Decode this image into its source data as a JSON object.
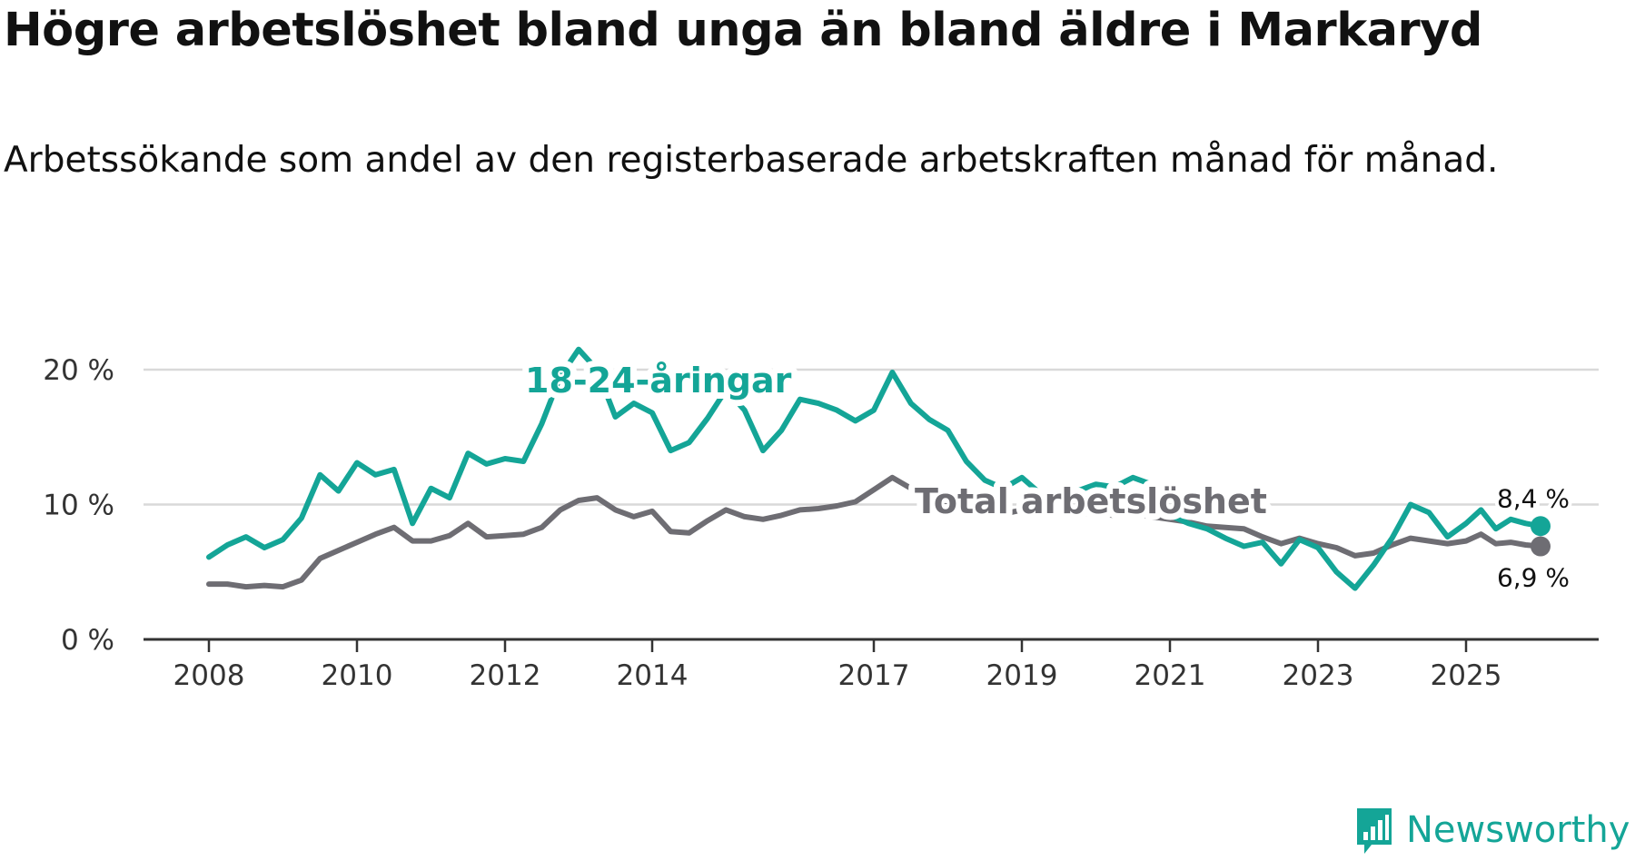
{
  "title": "Högre arbetslöshet bland unga än bland äldre i Markaryd",
  "subtitle": "Arbetssökande som andel av den registerbaserade arbetskraften månad för månad.",
  "brand": {
    "name": "Newsworthy",
    "icon": "newsworthy-logo-icon",
    "color": "#14a597"
  },
  "chart_data": {
    "type": "line",
    "title": "Högre arbetslöshet bland unga än bland äldre i Markaryd",
    "xlabel": "",
    "ylabel": "",
    "ylim": [
      0,
      22.5
    ],
    "y_ticks": [
      0,
      10,
      20
    ],
    "y_tick_labels": [
      "0 %",
      "10 %",
      "20 %"
    ],
    "x_ticks": [
      2008,
      2010,
      2012,
      2014,
      2017,
      2019,
      2021,
      2023,
      2025
    ],
    "x_tick_labels": [
      "2008",
      "2010",
      "2012",
      "2014",
      "2017",
      "2019",
      "2021",
      "2023",
      "2025"
    ],
    "grid": true,
    "series": [
      {
        "name": "18-24-åringar",
        "label": "18-24-åringar",
        "color": "#14a597",
        "end_label": "8,4 %",
        "points": [
          [
            2008.0,
            6.1
          ],
          [
            2008.25,
            7.0
          ],
          [
            2008.5,
            7.6
          ],
          [
            2008.75,
            6.8
          ],
          [
            2009.0,
            7.4
          ],
          [
            2009.25,
            9.0
          ],
          [
            2009.5,
            12.2
          ],
          [
            2009.75,
            11.0
          ],
          [
            2010.0,
            13.1
          ],
          [
            2010.25,
            12.2
          ],
          [
            2010.5,
            12.6
          ],
          [
            2010.75,
            8.6
          ],
          [
            2011.0,
            11.2
          ],
          [
            2011.25,
            10.5
          ],
          [
            2011.5,
            13.8
          ],
          [
            2011.75,
            13.0
          ],
          [
            2012.0,
            13.4
          ],
          [
            2012.25,
            13.2
          ],
          [
            2012.5,
            16.0
          ],
          [
            2012.75,
            19.5
          ],
          [
            2013.0,
            21.5
          ],
          [
            2013.25,
            20.0
          ],
          [
            2013.5,
            16.5
          ],
          [
            2013.75,
            17.5
          ],
          [
            2014.0,
            16.8
          ],
          [
            2014.25,
            14.0
          ],
          [
            2014.5,
            14.6
          ],
          [
            2014.75,
            16.4
          ],
          [
            2015.0,
            18.5
          ],
          [
            2015.25,
            17.0
          ],
          [
            2015.5,
            14.0
          ],
          [
            2015.75,
            15.5
          ],
          [
            2016.0,
            17.8
          ],
          [
            2016.25,
            17.5
          ],
          [
            2016.5,
            17.0
          ],
          [
            2016.75,
            16.2
          ],
          [
            2017.0,
            17.0
          ],
          [
            2017.25,
            19.8
          ],
          [
            2017.5,
            17.5
          ],
          [
            2017.75,
            16.3
          ],
          [
            2018.0,
            15.5
          ],
          [
            2018.25,
            13.2
          ],
          [
            2018.5,
            11.8
          ],
          [
            2018.75,
            11.2
          ],
          [
            2019.0,
            12.0
          ],
          [
            2019.25,
            10.8
          ],
          [
            2019.5,
            10.5
          ],
          [
            2019.75,
            11.0
          ],
          [
            2020.0,
            11.5
          ],
          [
            2020.25,
            11.3
          ],
          [
            2020.5,
            12.0
          ],
          [
            2020.75,
            11.5
          ],
          [
            2021.0,
            9.2
          ],
          [
            2021.25,
            8.6
          ],
          [
            2021.5,
            8.2
          ],
          [
            2021.75,
            7.5
          ],
          [
            2022.0,
            6.9
          ],
          [
            2022.25,
            7.2
          ],
          [
            2022.5,
            5.6
          ],
          [
            2022.75,
            7.4
          ],
          [
            2023.0,
            6.8
          ],
          [
            2023.25,
            5.0
          ],
          [
            2023.5,
            3.8
          ],
          [
            2023.75,
            5.5
          ],
          [
            2024.0,
            7.5
          ],
          [
            2024.25,
            10.0
          ],
          [
            2024.5,
            9.4
          ],
          [
            2024.75,
            7.6
          ],
          [
            2025.0,
            8.6
          ],
          [
            2025.25,
            9.6
          ],
          [
            2025.5,
            8.2
          ],
          [
            2025.75,
            8.9
          ],
          [
            2026.0,
            8.6
          ],
          [
            2026.25,
            8.4
          ]
        ]
      },
      {
        "name": "Total arbetslöshet",
        "label": "Total arbetslöshet",
        "color": "#6e6d73",
        "end_label": "6,9 %",
        "points": [
          [
            2008.0,
            4.1
          ],
          [
            2008.25,
            4.1
          ],
          [
            2008.5,
            3.9
          ],
          [
            2008.75,
            4.0
          ],
          [
            2009.0,
            3.9
          ],
          [
            2009.25,
            4.4
          ],
          [
            2009.5,
            6.0
          ],
          [
            2009.75,
            6.6
          ],
          [
            2010.0,
            7.2
          ],
          [
            2010.25,
            7.8
          ],
          [
            2010.5,
            8.3
          ],
          [
            2010.75,
            7.3
          ],
          [
            2011.0,
            7.3
          ],
          [
            2011.25,
            7.7
          ],
          [
            2011.5,
            8.6
          ],
          [
            2011.75,
            7.6
          ],
          [
            2012.0,
            7.7
          ],
          [
            2012.25,
            7.8
          ],
          [
            2012.5,
            8.3
          ],
          [
            2012.75,
            9.6
          ],
          [
            2013.0,
            10.3
          ],
          [
            2013.25,
            10.5
          ],
          [
            2013.5,
            9.6
          ],
          [
            2013.75,
            9.1
          ],
          [
            2014.0,
            9.5
          ],
          [
            2014.25,
            8.0
          ],
          [
            2014.5,
            7.9
          ],
          [
            2014.75,
            8.8
          ],
          [
            2015.0,
            9.6
          ],
          [
            2015.25,
            9.1
          ],
          [
            2015.5,
            8.9
          ],
          [
            2015.75,
            9.2
          ],
          [
            2016.0,
            9.6
          ],
          [
            2016.25,
            9.7
          ],
          [
            2016.5,
            9.9
          ],
          [
            2016.75,
            10.2
          ],
          [
            2017.0,
            11.1
          ],
          [
            2017.25,
            12.0
          ],
          [
            2017.5,
            11.2
          ],
          [
            2017.75,
            10.6
          ],
          [
            2018.0,
            10.2
          ],
          [
            2018.25,
            9.7
          ],
          [
            2018.5,
            9.4
          ],
          [
            2018.75,
            9.3
          ],
          [
            2019.0,
            9.6
          ],
          [
            2019.25,
            9.6
          ],
          [
            2019.5,
            9.5
          ],
          [
            2019.75,
            9.4
          ],
          [
            2020.0,
            9.3
          ],
          [
            2020.25,
            9.2
          ],
          [
            2020.5,
            9.3
          ],
          [
            2020.75,
            9.1
          ],
          [
            2021.0,
            8.9
          ],
          [
            2021.25,
            8.7
          ],
          [
            2021.5,
            8.4
          ],
          [
            2021.75,
            8.3
          ],
          [
            2022.0,
            8.2
          ],
          [
            2022.25,
            7.6
          ],
          [
            2022.5,
            7.1
          ],
          [
            2022.75,
            7.5
          ],
          [
            2023.0,
            7.1
          ],
          [
            2023.25,
            6.8
          ],
          [
            2023.5,
            6.2
          ],
          [
            2023.75,
            6.4
          ],
          [
            2024.0,
            7.0
          ],
          [
            2024.25,
            7.5
          ],
          [
            2024.5,
            7.3
          ],
          [
            2024.75,
            7.1
          ],
          [
            2025.0,
            7.3
          ],
          [
            2025.25,
            7.8
          ],
          [
            2025.5,
            7.1
          ],
          [
            2025.75,
            7.2
          ],
          [
            2026.0,
            7.0
          ],
          [
            2026.25,
            6.9
          ]
        ]
      }
    ]
  }
}
